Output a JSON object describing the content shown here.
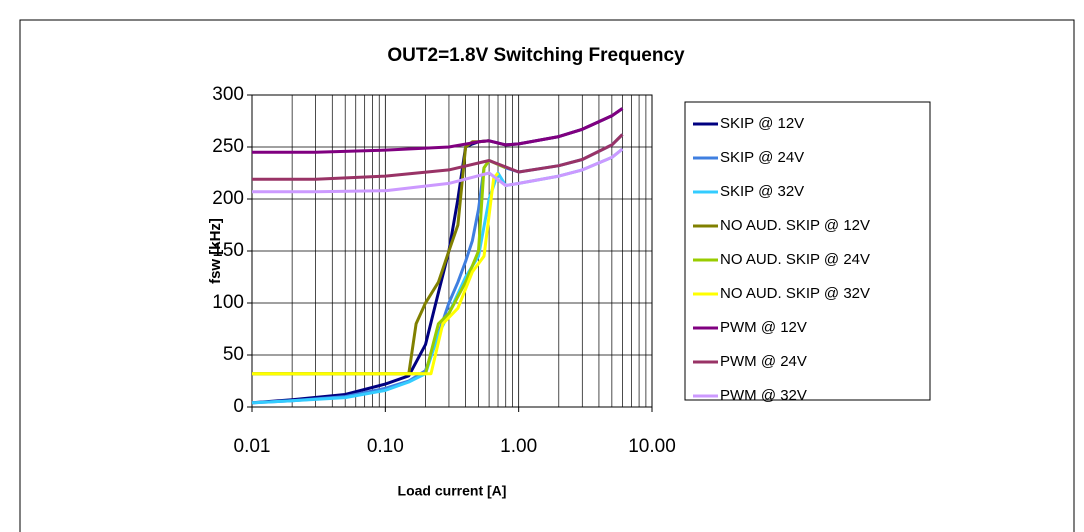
{
  "chart_data": {
    "type": "line",
    "title": "OUT2=1.8V Switching Frequency",
    "xlabel": "Load current [A]",
    "ylabel": "fsw [kHz]",
    "log_x": true,
    "grid": true,
    "legend": "right",
    "xlim": [
      0.01,
      10
    ],
    "xticks": [
      {
        "value": 0.01,
        "label": "0.01"
      },
      {
        "value": 0.1,
        "label": "0.10"
      },
      {
        "value": 1,
        "label": "1.00"
      },
      {
        "value": 10,
        "label": "10.00"
      }
    ],
    "ylim": [
      0,
      300
    ],
    "yticks": [
      0,
      50,
      100,
      150,
      200,
      250,
      300
    ],
    "series": [
      {
        "name": "SKIP @ 12V",
        "color": "#000080",
        "x": [
          0.01,
          0.02,
          0.05,
          0.1,
          0.15,
          0.2,
          0.25,
          0.3,
          0.35,
          0.4,
          0.45,
          0.5,
          0.6,
          0.8,
          1,
          2,
          3,
          5,
          6
        ],
        "values": [
          4,
          7,
          12,
          22,
          30,
          60,
          110,
          150,
          200,
          250,
          253,
          255,
          256,
          252,
          253,
          260,
          267,
          280,
          287
        ]
      },
      {
        "name": "SKIP @ 24V",
        "color": "#3f7fe0",
        "x": [
          0.01,
          0.02,
          0.05,
          0.1,
          0.15,
          0.2,
          0.25,
          0.3,
          0.35,
          0.4,
          0.45,
          0.5,
          0.55,
          0.6,
          0.8,
          1,
          2,
          3,
          5,
          6
        ],
        "values": [
          4,
          6,
          10,
          18,
          25,
          35,
          70,
          100,
          120,
          140,
          160,
          190,
          230,
          237,
          230,
          226,
          232,
          238,
          252,
          262
        ]
      },
      {
        "name": "SKIP @ 32V",
        "color": "#33ccff",
        "x": [
          0.01,
          0.02,
          0.05,
          0.1,
          0.15,
          0.2,
          0.25,
          0.3,
          0.4,
          0.5,
          0.6,
          0.7,
          0.8,
          1,
          2,
          3,
          5,
          6
        ],
        "values": [
          4,
          6,
          9,
          16,
          24,
          32,
          70,
          90,
          125,
          145,
          200,
          225,
          213,
          215,
          222,
          228,
          240,
          248
        ]
      },
      {
        "name": "NO AUD. SKIP @ 12V",
        "color": "#808000",
        "x": [
          0.01,
          0.05,
          0.1,
          0.15,
          0.17,
          0.2,
          0.25,
          0.3,
          0.35,
          0.4,
          0.45,
          0.5,
          0.6
        ],
        "values": [
          32,
          32,
          32,
          32,
          80,
          100,
          120,
          150,
          175,
          250,
          255,
          255,
          256
        ]
      },
      {
        "name": "NO AUD. SKIP @ 24V",
        "color": "#99cc00",
        "x": [
          0.01,
          0.05,
          0.1,
          0.15,
          0.2,
          0.25,
          0.3,
          0.4,
          0.5,
          0.55,
          0.6,
          0.8
        ],
        "values": [
          32,
          32,
          32,
          32,
          32,
          80,
          90,
          120,
          150,
          230,
          237,
          230
        ]
      },
      {
        "name": "NO AUD. SKIP @ 32V",
        "color": "#ffff00",
        "x": [
          0.01,
          0.05,
          0.1,
          0.15,
          0.22,
          0.27,
          0.35,
          0.45,
          0.55,
          0.65,
          0.7
        ],
        "values": [
          32,
          32,
          32,
          32,
          32,
          80,
          95,
          130,
          145,
          220,
          225
        ]
      },
      {
        "name": "PWM @ 12V",
        "color": "#800080",
        "x": [
          0.01,
          0.03,
          0.1,
          0.3,
          0.5,
          0.6,
          0.8,
          1,
          2,
          3,
          5,
          6
        ],
        "values": [
          245,
          245,
          247,
          250,
          255,
          256,
          252,
          253,
          260,
          267,
          280,
          287
        ]
      },
      {
        "name": "PWM @ 24V",
        "color": "#993366",
        "x": [
          0.01,
          0.03,
          0.1,
          0.3,
          0.6,
          1,
          2,
          3,
          5,
          6
        ],
        "values": [
          219,
          219,
          222,
          228,
          237,
          226,
          232,
          238,
          252,
          262
        ]
      },
      {
        "name": "PWM @ 32V",
        "color": "#cc99ff",
        "x": [
          0.01,
          0.03,
          0.1,
          0.3,
          0.6,
          0.8,
          1,
          2,
          3,
          5,
          6
        ],
        "values": [
          207,
          207,
          208,
          215,
          225,
          213,
          215,
          222,
          228,
          240,
          248
        ]
      }
    ]
  }
}
